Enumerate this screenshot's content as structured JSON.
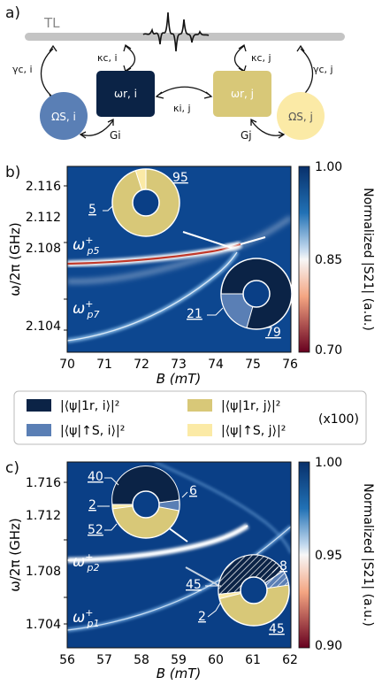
{
  "panel_a": {
    "label": "a)",
    "tl_label": "TL",
    "gamma_ci": "γc, i",
    "kappa_ci": "κc, i",
    "kappa_cj": "κc, j",
    "gamma_cj": "γc, j",
    "omega_si": "ΩS, i",
    "omega_ri": "ωr, i",
    "kappa_ij": "κi, j",
    "omega_rj": "ωr, j",
    "omega_sj": "ΩS, j",
    "g_i": "Gi",
    "g_j": "Gj",
    "colors": {
      "r_i": "#0b2346",
      "s_i": "#5a7fb5",
      "r_j": "#d8c878",
      "s_j": "#fbeaa6"
    }
  },
  "panel_b": {
    "label": "b)",
    "ylabel": "ω/2π (GHz)",
    "xlabel": "B (mT)",
    "cbar_label": "Normalized |S21| (a.u.)",
    "cbar_ticks": [
      "1.00",
      "0.85",
      "0.70"
    ],
    "mode_top": "ω",
    "mode_top_sup": "+",
    "mode_top_sub": "p5",
    "mode_bot": "ω",
    "mode_bot_sup": "+",
    "mode_bot_sub": "p7",
    "donut1_labels": [
      "5",
      "95"
    ],
    "donut2_labels": [
      "21",
      "79"
    ]
  },
  "legend": {
    "entries": [
      "|⟨ψ|1r, i⟩|²",
      "|⟨ψ|↑S, i⟩|²",
      "|⟨ψ|1r, j⟩|²",
      "|⟨ψ|↑S, j⟩|²"
    ],
    "scale": "(x100)"
  },
  "panel_c": {
    "label": "c)",
    "ylabel": "ω/2π (GHz)",
    "xlabel": "B (mT)",
    "cbar_label": "Normalized |S21| (a.u.)",
    "cbar_ticks": [
      "1.00",
      "0.95",
      "0.90"
    ],
    "mode_top": "ω",
    "mode_top_sup": "+",
    "mode_top_sub": "p2",
    "mode_bot": "ω",
    "mode_bot_sup": "+",
    "mode_bot_sub": "p1",
    "donut1_labels": [
      "40",
      "6",
      "2",
      "52"
    ],
    "donut2_labels": [
      "8",
      "45",
      "2",
      "45"
    ]
  },
  "chart_data": [
    {
      "type": "heatmap",
      "xlabel": "B (mT)",
      "ylabel": "ω/2π (GHz)",
      "colorbar_label": "Normalized |S21| (a.u.)",
      "x_ticks": [
        "70",
        "71",
        "72",
        "73",
        "74",
        "75",
        "76"
      ],
      "y_ticks": [
        "2.116",
        "2.112",
        "2.108",
        "2.104"
      ],
      "xlim": [
        70,
        76
      ],
      "ylim": [
        2.102,
        2.119
      ],
      "clim": [
        0.7,
        1.0
      ],
      "pie_insets": [
        {
          "values": [
            95,
            5
          ],
          "components": [
            "|⟨ψ|1r, j⟩|²",
            "|⟨ψ|↑S, j⟩|²"
          ]
        },
        {
          "values": [
            79,
            21
          ],
          "components": [
            "|⟨ψ|1r, i⟩|²",
            "|⟨ψ|↑S, i⟩|²"
          ]
        }
      ]
    },
    {
      "type": "heatmap",
      "xlabel": "B (mT)",
      "ylabel": "ω/2π (GHz)",
      "colorbar_label": "Normalized |S21| (a.u.)",
      "x_ticks": [
        "56",
        "57",
        "58",
        "59",
        "60",
        "61",
        "62"
      ],
      "y_ticks": [
        "1.716",
        "1.712",
        "1.708",
        "1.704"
      ],
      "xlim": [
        56,
        62
      ],
      "ylim": [
        1.702,
        1.719
      ],
      "clim": [
        0.9,
        1.0
      ],
      "pie_insets": [
        {
          "values": [
            40,
            6,
            52,
            2
          ],
          "components": [
            "|⟨ψ|1r, i⟩|²",
            "|⟨ψ|↑S, i⟩|²",
            "|⟨ψ|1r, j⟩|²",
            "|⟨ψ|↑S, j⟩|²"
          ]
        },
        {
          "values": [
            45,
            8,
            45,
            2
          ],
          "components": [
            "|⟨ψ|1r, i⟩|²",
            "|⟨ψ|↑S, i⟩|²",
            "|⟨ψ|1r, j⟩|²",
            "|⟨ψ|↑S, j⟩|²"
          ]
        }
      ]
    }
  ]
}
